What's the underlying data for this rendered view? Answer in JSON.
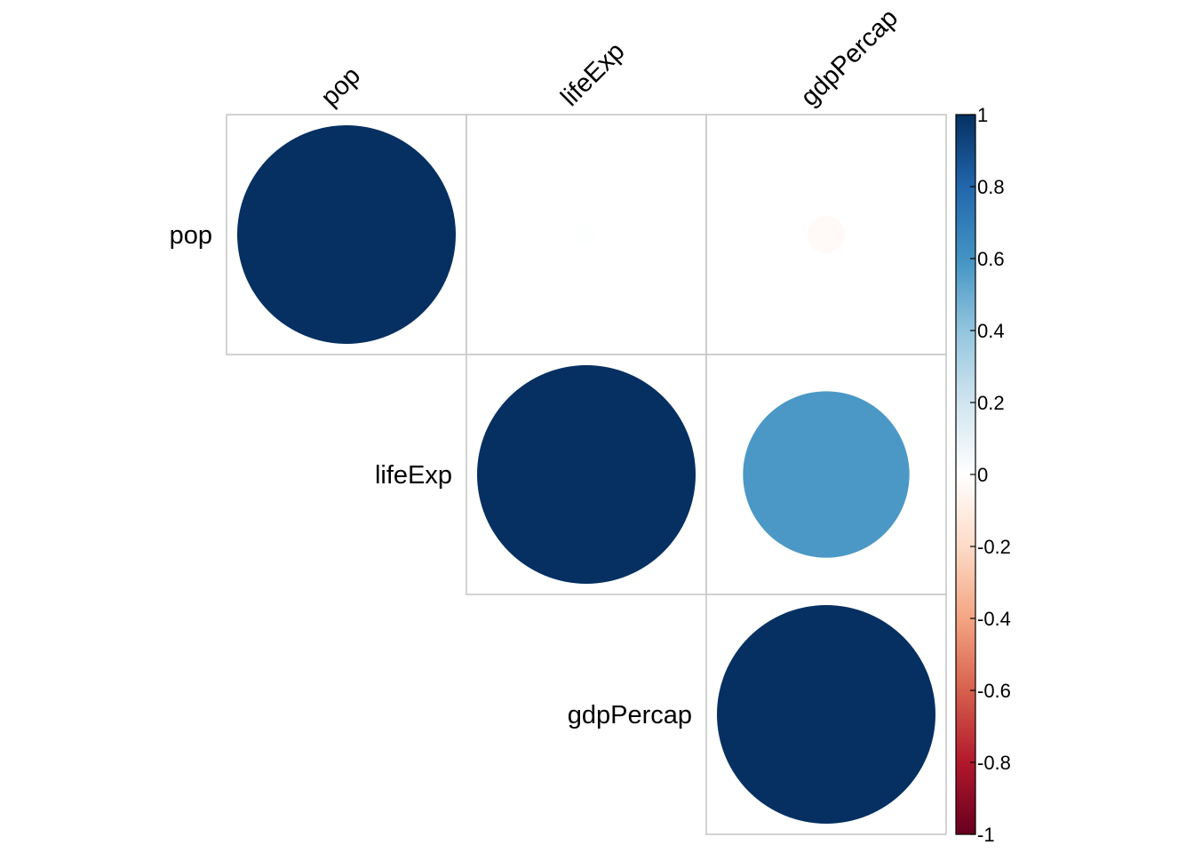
{
  "chart_data": {
    "type": "heatmap",
    "subtype": "correlation-circle-upper",
    "variables": [
      "pop",
      "lifeExp",
      "gdpPercap"
    ],
    "matrix": [
      [
        1.0,
        0.01,
        -0.03
      ],
      [
        null,
        1.0,
        0.58
      ],
      [
        null,
        null,
        1.0
      ]
    ],
    "colorbar": {
      "ticks": [
        "1",
        "0.8",
        "0.6",
        "0.4",
        "0.2",
        "0",
        "-0.2",
        "-0.4",
        "-0.6",
        "-0.8",
        "-1"
      ],
      "range": [
        -1,
        1
      ],
      "colors": [
        "#67001F",
        "#B2182B",
        "#D6604D",
        "#F4A582",
        "#FDDBC7",
        "#FFFFFF",
        "#D1E5F0",
        "#92C5DE",
        "#4393C3",
        "#2166AC",
        "#053061"
      ]
    },
    "grid": true
  }
}
